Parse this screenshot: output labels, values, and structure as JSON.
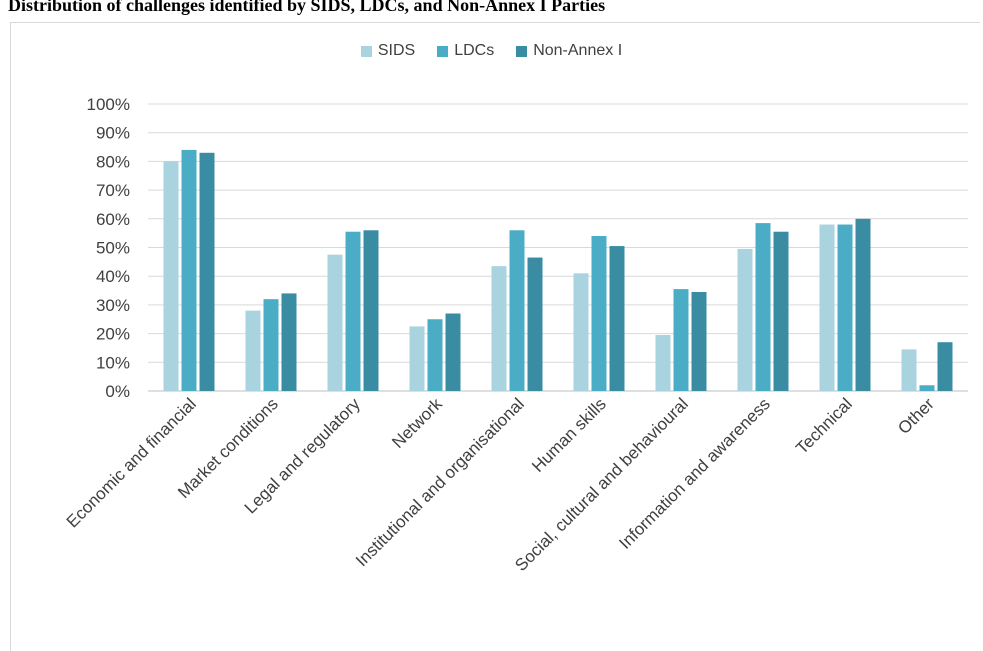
{
  "chart_data": {
    "type": "bar",
    "title": "Distribution of challenges identified by SIDS, LDCs, and Non-Annex I Parties",
    "categories": [
      "Economic and financial",
      "Market conditions",
      "Legal and regulatory",
      "Network",
      "Institutional and organisational",
      "Human skills",
      "Social, cultural and behavioural",
      "Information and awareness",
      "Technical",
      "Other"
    ],
    "series": [
      {
        "name": "SIDS",
        "color": "#a8d3df",
        "values": [
          80,
          28,
          47.5,
          22.5,
          43.5,
          41,
          19.5,
          49.5,
          58,
          14.5
        ]
      },
      {
        "name": "LDCs",
        "color": "#4bacc6",
        "values": [
          84,
          32,
          55.5,
          25,
          56,
          54,
          35.5,
          58.5,
          58,
          2
        ]
      },
      {
        "name": "Non-Annex I",
        "color": "#3a8ca3",
        "values": [
          83,
          34,
          56,
          27,
          46.5,
          50.5,
          34.5,
          55.5,
          60,
          17
        ]
      }
    ],
    "yticks": [
      "0%",
      "10%",
      "20%",
      "30%",
      "40%",
      "50%",
      "60%",
      "70%",
      "80%",
      "90%",
      "100%"
    ],
    "ylim": [
      0,
      100
    ],
    "grid": true,
    "legend": "top"
  }
}
